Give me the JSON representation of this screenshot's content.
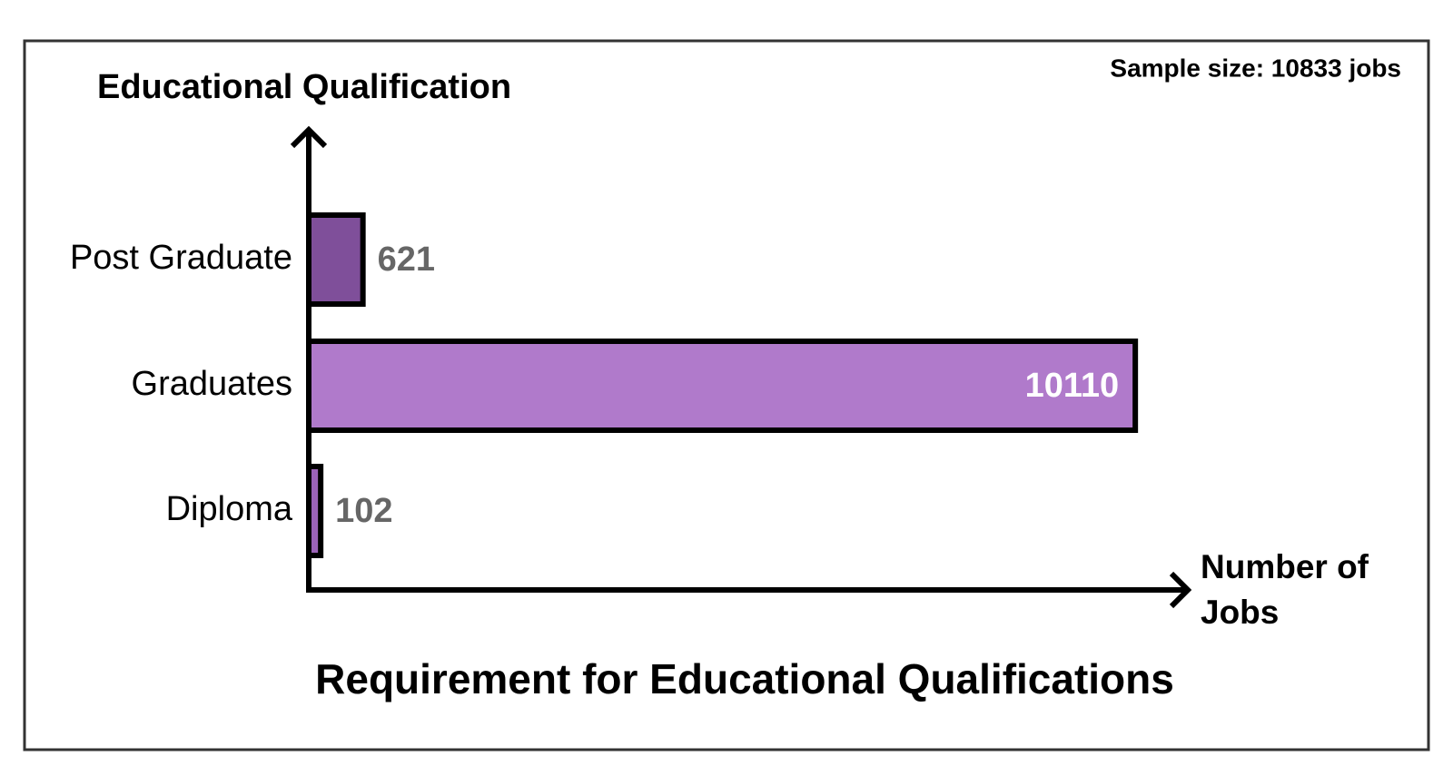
{
  "chart_data": {
    "type": "bar",
    "orientation": "horizontal",
    "title": "Requirement for Educational Qualifications",
    "y_label": "Educational Qualification",
    "x_label": "Number of Jobs",
    "annotation": "Sample size: 10833 jobs",
    "categories": [
      "Post Graduate",
      "Graduates",
      "Diploma"
    ],
    "values": [
      621,
      10110,
      102
    ],
    "colors": [
      "#7f4f9a",
      "#b07acb",
      "#9b63b8"
    ],
    "xlim": [
      0,
      10800
    ]
  }
}
